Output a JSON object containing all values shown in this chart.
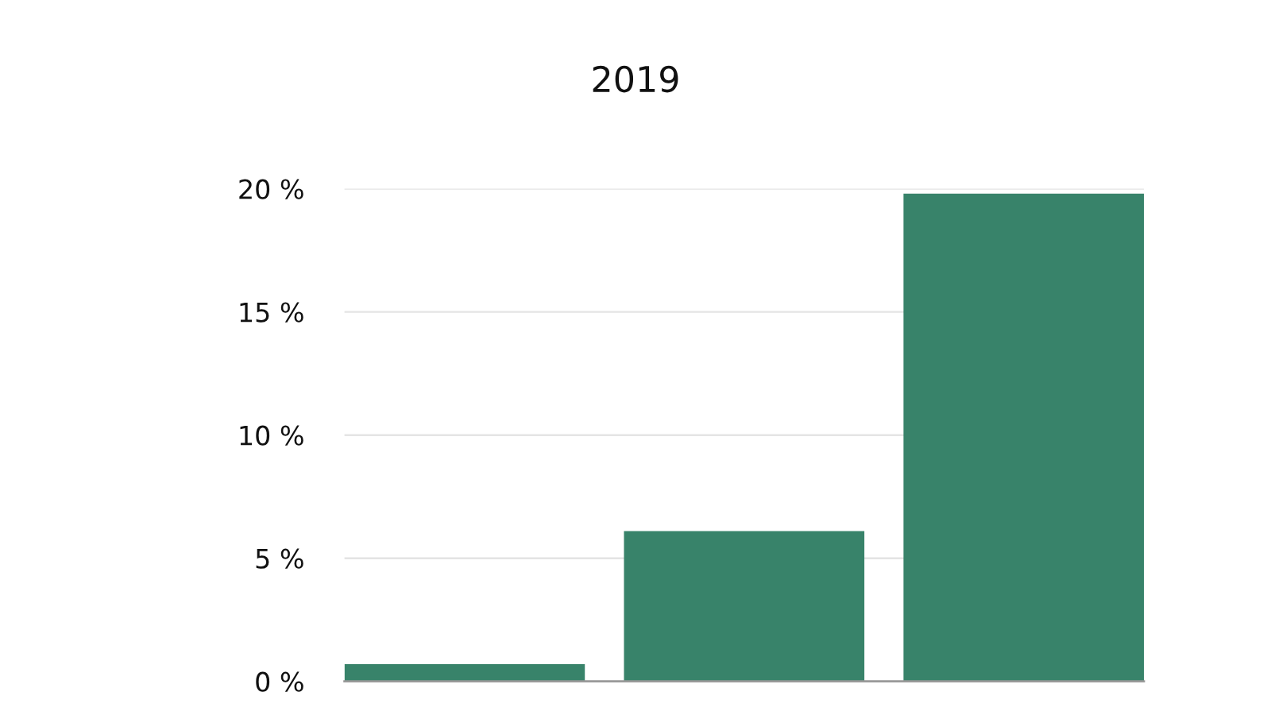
{
  "chart_data": {
    "type": "bar",
    "title": "2019",
    "categories": [
      null,
      null,
      null
    ],
    "values": [
      0.7,
      6.1,
      19.8
    ],
    "color": "#38836a",
    "ylim": [
      0,
      20
    ],
    "yticks": [
      {
        "value": 0,
        "label": "0 %"
      },
      {
        "value": 5,
        "label": "5 %"
      },
      {
        "value": 10,
        "label": "10 %"
      },
      {
        "value": 15,
        "label": "15 %"
      },
      {
        "value": 20,
        "label": "20 %"
      }
    ],
    "grid": "y",
    "legend": false
  }
}
